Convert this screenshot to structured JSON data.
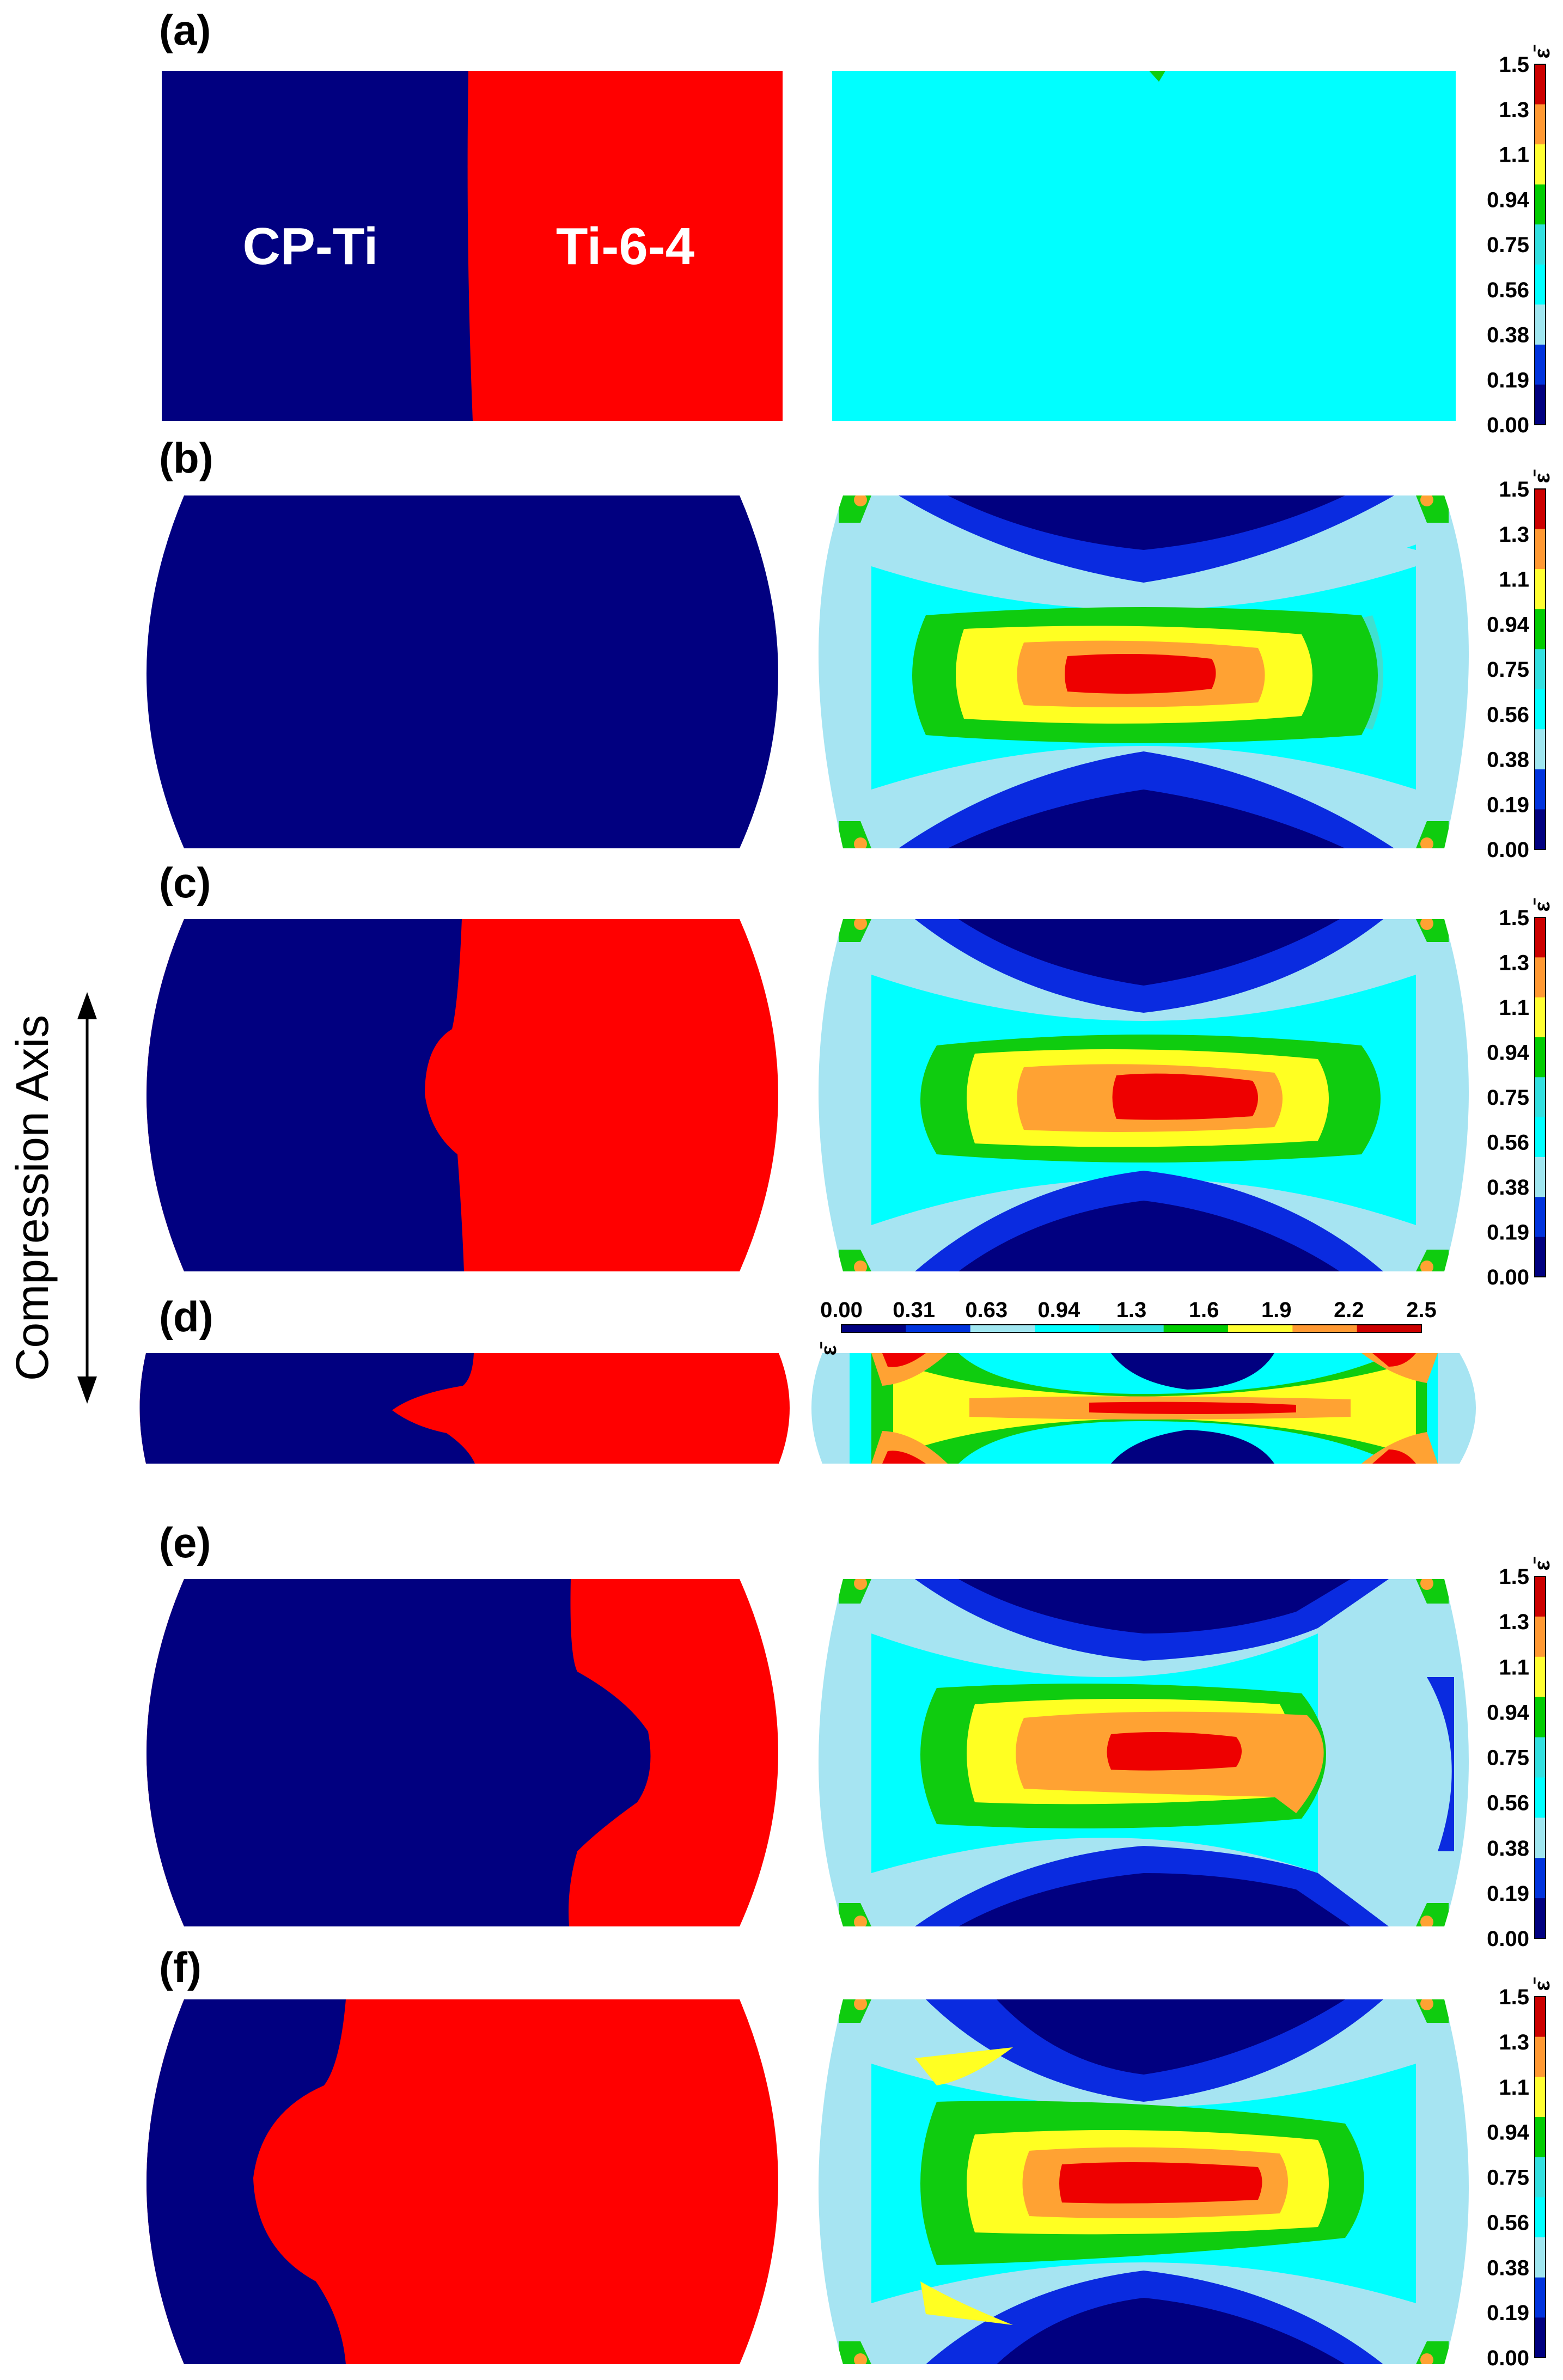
{
  "panels": [
    {
      "label": "(a)"
    },
    {
      "label": "(b)"
    },
    {
      "label": "(c)"
    },
    {
      "label": "(d)"
    },
    {
      "label": "(e)"
    },
    {
      "label": "(f)"
    }
  ],
  "materials": {
    "left": "CP-Ti",
    "right": "Ti-6-4"
  },
  "compression_axis": "Compression Axis",
  "colorbar": {
    "symbol": "ε̄",
    "ticks": [
      "1.5",
      "1.3",
      "1.1",
      "0.94",
      "0.75",
      "0.56",
      "0.38",
      "0.19",
      "0.00"
    ],
    "colors": [
      "#cc0000",
      "#ff9933",
      "#ffff33",
      "#00cc00",
      "#33e0e0",
      "#00ffff",
      "#a0e6f0",
      "#0033dd",
      "#000080"
    ]
  },
  "colorbar_d": {
    "symbol": "ε̄",
    "ticks": [
      "0.00",
      "0.31",
      "0.63",
      "0.94",
      "1.3",
      "1.6",
      "1.9",
      "2.2",
      "2.5"
    ]
  },
  "colors": {
    "cp_ti": "#010080",
    "ti64": "#ff0000",
    "dark_blue": "#010080",
    "blue": "#0a2be0",
    "light_blue": "#a6e4f2",
    "cyan": "#00ffff",
    "teal": "#3fe0d0",
    "green": "#0fcc0f",
    "yellow": "#ffff22",
    "orange": "#ffa233",
    "red": "#ee0000"
  }
}
